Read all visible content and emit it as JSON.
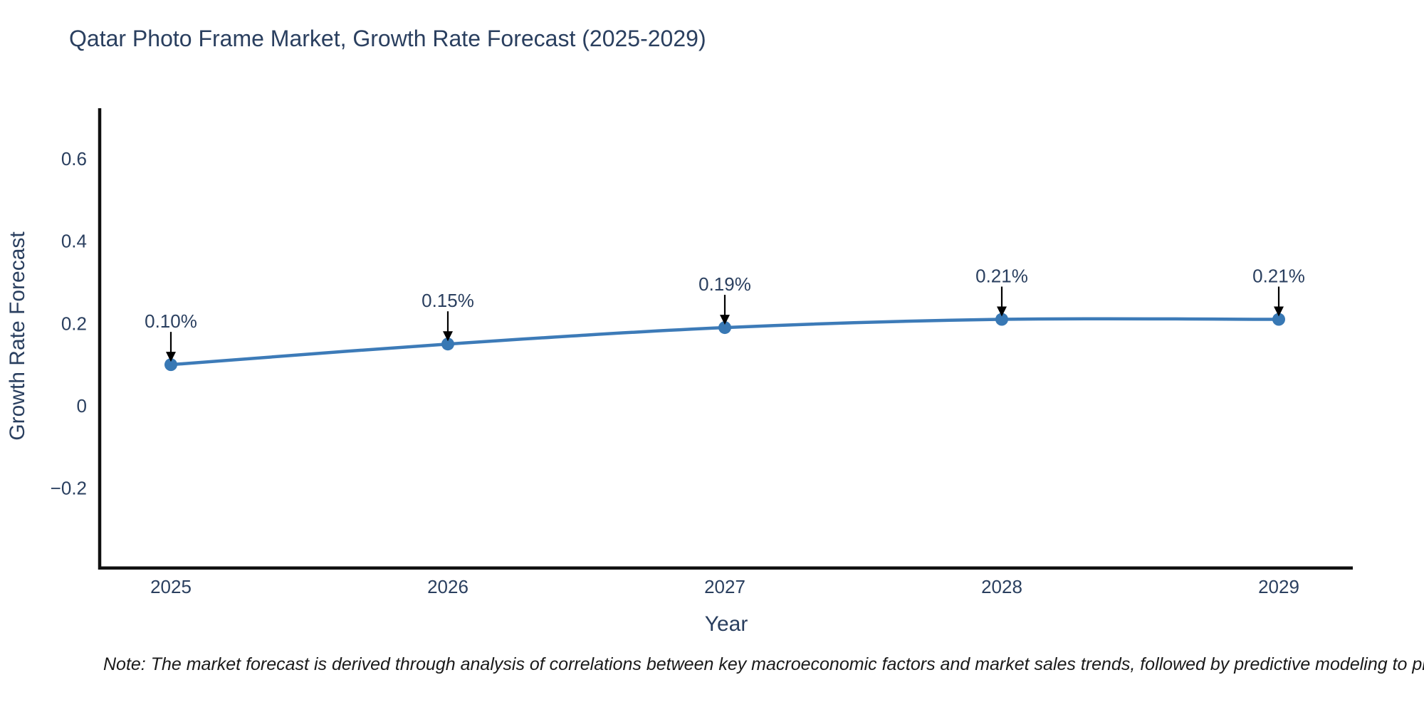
{
  "chart": {
    "title": "Qatar Photo Frame Market, Growth Rate Forecast (2025-2029)",
    "xlabel": "Year",
    "ylabel": "Growth Rate Forecast"
  },
  "chart_data": {
    "type": "line",
    "title": "Qatar Photo Frame Market, Growth Rate Forecast (2025-2029)",
    "xlabel": "Year",
    "ylabel": "Growth Rate Forecast",
    "x": [
      2025,
      2026,
      2027,
      2028,
      2029
    ],
    "series": [
      {
        "name": "Growth Rate Forecast",
        "values": [
          0.1,
          0.15,
          0.19,
          0.21,
          0.21
        ]
      }
    ],
    "point_labels": [
      "0.10%",
      "0.15%",
      "0.19%",
      "0.21%",
      "0.21%"
    ],
    "xtick_labels": [
      "2025",
      "2026",
      "2027",
      "2028",
      "2029"
    ],
    "ytick_values": [
      0.6,
      0.4,
      0.2,
      0,
      -0.2
    ],
    "ytick_labels": [
      "0.6",
      "0.4",
      "0.2",
      "0",
      "−0.2"
    ],
    "ylim": [
      -0.4,
      0.72
    ],
    "grid": false,
    "legend_position": "none",
    "line_shape": "spline",
    "colors": {
      "line": "#3d7bb8",
      "marker": "#3878b4",
      "arrow": "#000000",
      "text": "#2a3f5f",
      "axis": "#101010",
      "background": "#ffffff"
    }
  },
  "note": "Note: The market forecast is derived through analysis of correlations between key macroeconomic factors and market sales trends, followed by predictive modeling to project future sa"
}
